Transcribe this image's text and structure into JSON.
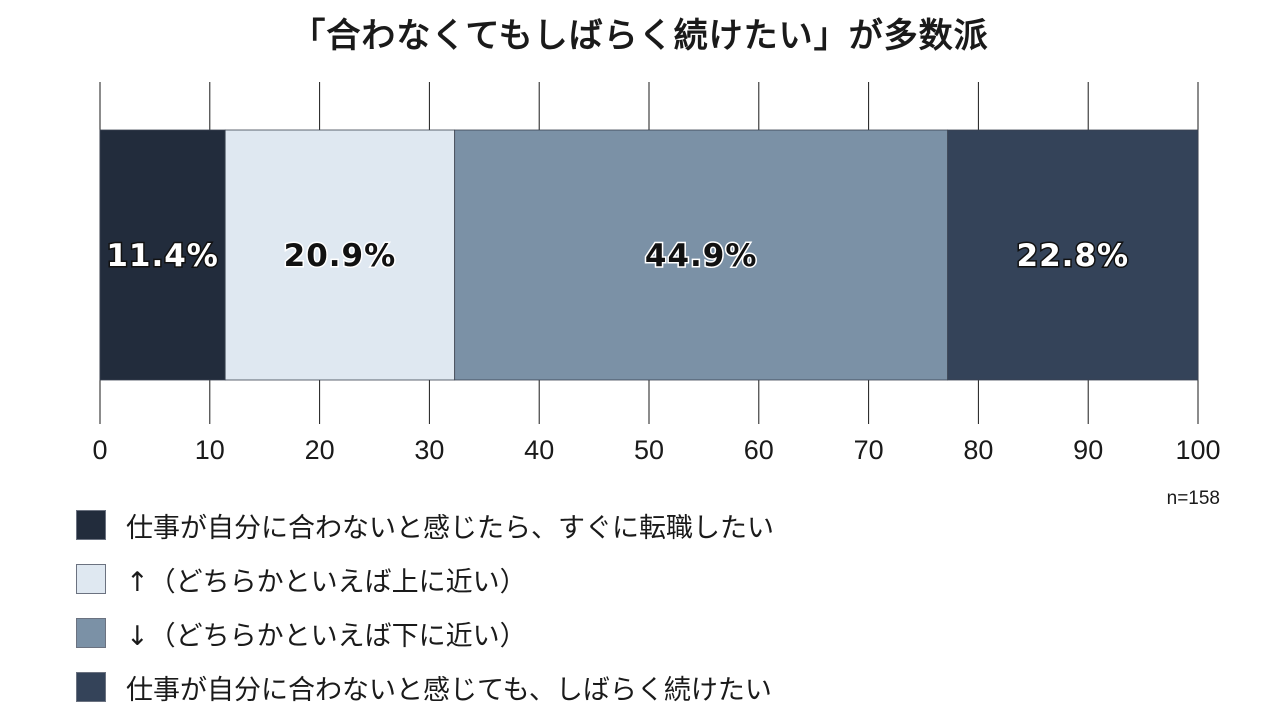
{
  "chart_data": {
    "type": "bar",
    "orientation": "horizontal-stacked",
    "title": "「合わなくてもしばらく続けたい」が多数派",
    "note": "n=158",
    "x_ticks": [
      "0",
      "10",
      "20",
      "30",
      "40",
      "50",
      "60",
      "70",
      "80",
      "90",
      "100"
    ],
    "xlim": [
      0,
      100
    ],
    "grid": false,
    "series": [
      {
        "name": "仕事が自分に合わないと感じたら、すぐに転職したい",
        "value": 11.4,
        "label": "11.4%",
        "color": "#222c3c",
        "label_color": "#ffffff"
      },
      {
        "name": "↑（どちらかといえば上に近い）",
        "value": 20.9,
        "label": "20.9%",
        "color": "#dfe8f1",
        "label_color": "#111111"
      },
      {
        "name": "↓（どちらかといえば下に近い）",
        "value": 44.9,
        "label": "44.9%",
        "color": "#7b91a6",
        "label_color": "#111111"
      },
      {
        "name": "仕事が自分に合わないと感じても、しばらく続けたい",
        "value": 22.8,
        "label": "22.8%",
        "color": "#344359",
        "label_color": "#ffffff"
      }
    ]
  }
}
